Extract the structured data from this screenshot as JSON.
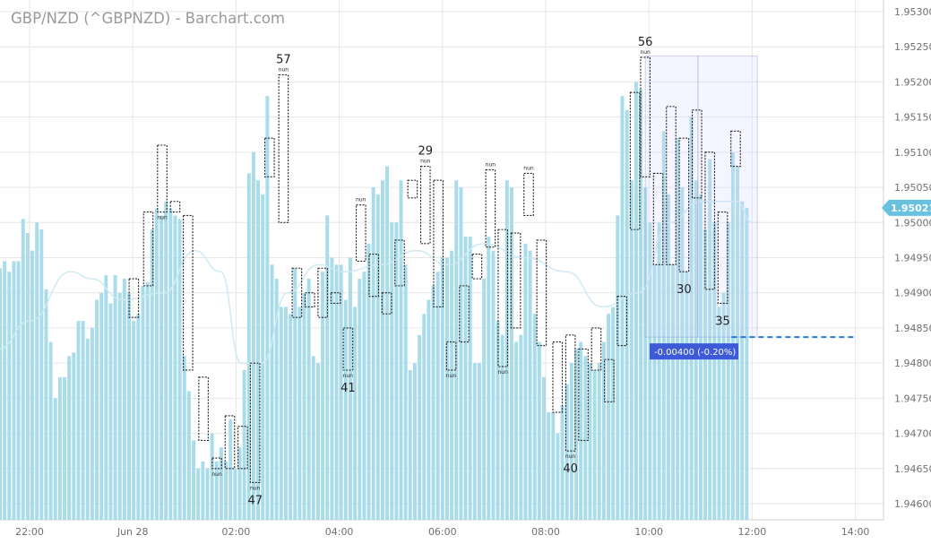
{
  "title": "GBP/NZD (^GBPNZD) - Barchart.com",
  "colors": {
    "bar": "#a8dcea",
    "bar_edge": "#7fcbe0",
    "grid": "#e6e6e6",
    "box": "#222222",
    "price_tag": "#67c1df",
    "measure": "#3d5bd9",
    "dashed": "#2b7bd6",
    "ma_line": "#cfe9f5"
  },
  "price_tag": {
    "label": "1.95021"
  },
  "measure_label": {
    "text": "-0.00400 (-0.20%)"
  },
  "chart_data": {
    "type": "bar",
    "y_ticks": [
      "1.94600",
      "1.94650",
      "1.94700",
      "1.94750",
      "1.94800",
      "1.94850",
      "1.94900",
      "1.94950",
      "1.95000",
      "1.95050",
      "1.95100",
      "1.95150",
      "1.95200",
      "1.95250",
      "1.95300"
    ],
    "ylim": [
      1.9459,
      1.9532
    ],
    "x_ticks": [
      {
        "label": "22:00",
        "t": 1.0
      },
      {
        "label": "Jun 28",
        "t": 3.0
      },
      {
        "label": "02:00",
        "t": 5.0
      },
      {
        "label": "04:00",
        "t": 7.0
      },
      {
        "label": "06:00",
        "t": 9.0
      },
      {
        "label": "08:00",
        "t": 11.0
      },
      {
        "label": "10:00",
        "t": 13.0
      },
      {
        "label": "12:00",
        "t": 15.0
      },
      {
        "label": "14:00",
        "t": 17.0
      }
    ],
    "tpo_values": [
      1.94815,
      1.94858,
      1.94925,
      1.94945,
      1.94935,
      1.94945,
      1.9493,
      1.94945,
      1.94945,
      1.95005,
      1.94985,
      1.9496,
      1.95,
      1.9499,
      1.94905,
      1.9483,
      1.9475,
      1.9478,
      1.9478,
      1.9481,
      1.94815,
      1.9486,
      1.9486,
      1.94835,
      1.9485,
      1.9489,
      1.949,
      1.94925,
      1.94885,
      1.94925,
      1.949,
      1.9492,
      1.949,
      1.9486,
      1.9487,
      1.9491,
      1.94915,
      1.9499,
      1.9502,
      1.9501,
      1.9503,
      1.9502,
      1.9501,
      1.95005,
      1.9481,
      1.9476,
      1.9469,
      1.9465,
      1.9466,
      1.9465,
      1.947,
      1.9466,
      1.9468,
      1.9466,
      1.9472,
      1.9465,
      1.9468,
      1.9479,
      1.9507,
      1.951,
      1.9506,
      1.9504,
      1.9518,
      1.9494,
      1.9492,
      1.9488,
      1.9488,
      1.9487,
      1.94935,
      1.9488,
      1.949,
      1.9492,
      1.9481,
      1.948,
      1.9493,
      1.9501,
      1.9495,
      1.9494,
      1.9494,
      1.9489,
      1.9495,
      1.9488,
      1.9492,
      1.9493,
      1.9497,
      1.9505,
      1.9504,
      1.9506,
      1.9508,
      1.95,
      1.95,
      1.9506,
      1.9494,
      1.9479,
      1.948,
      1.9484,
      1.9487,
      1.9489,
      1.9491,
      1.9493,
      1.9495,
      1.9495,
      1.9496,
      1.9506,
      1.9505,
      1.9498,
      1.9498,
      1.948,
      1.948,
      1.9492,
      1.9498,
      1.9496,
      1.9486,
      1.9484,
      1.9506,
      1.9505,
      1.9483,
      1.9484,
      1.9497,
      1.9496,
      1.9487,
      1.9483,
      1.9478,
      1.9473,
      1.9473,
      1.947,
      1.9474,
      1.9477,
      1.948,
      1.9482,
      1.9483,
      1.9481,
      1.948,
      1.9479,
      1.948,
      1.9483,
      1.9487,
      1.9488,
      1.9501,
      1.9518,
      1.9516,
      1.9506,
      1.952,
      1.9519,
      1.9505,
      1.95,
      1.9494,
      1.95,
      1.9513,
      1.9504,
      1.9494,
      1.9512,
      1.9505,
      1.9493,
      1.9515,
      1.9506,
      1.9504,
      1.9499,
      1.9509,
      1.95,
      1.9488,
      1.949,
      1.95,
      1.951,
      1.9508,
      1.9503,
      1.95021
    ],
    "tpo_boxes": [
      {
        "t": 3.02,
        "low": 1.94865,
        "high": 1.9492
      },
      {
        "t": 3.3,
        "low": 1.9491,
        "high": 1.95015
      },
      {
        "t": 3.57,
        "low": 1.95015,
        "high": 1.9511,
        "tag": "nun"
      },
      {
        "t": 3.82,
        "low": 1.95015,
        "high": 1.9503
      },
      {
        "t": 4.07,
        "low": 1.9479,
        "high": 1.9501
      },
      {
        "t": 4.37,
        "low": 1.9469,
        "high": 1.9478
      },
      {
        "t": 4.63,
        "low": 1.9465,
        "high": 1.94665,
        "tag": "nun"
      },
      {
        "t": 4.88,
        "low": 1.9465,
        "high": 1.94725
      },
      {
        "t": 5.13,
        "low": 1.9465,
        "high": 1.9471
      },
      {
        "t": 5.37,
        "low": 1.9463,
        "high": 1.948,
        "tag": "nun",
        "label": "47",
        "label_pos": "below"
      },
      {
        "t": 5.65,
        "low": 1.95065,
        "high": 1.9512
      },
      {
        "t": 5.92,
        "low": 1.95,
        "high": 1.9521,
        "tag": "nun",
        "label": "57",
        "label_pos": "above"
      },
      {
        "t": 6.18,
        "low": 1.94865,
        "high": 1.94935
      },
      {
        "t": 6.43,
        "low": 1.9488,
        "high": 1.949
      },
      {
        "t": 6.68,
        "low": 1.94865,
        "high": 1.94935
      },
      {
        "t": 6.93,
        "low": 1.94885,
        "high": 1.949
      },
      {
        "t": 7.17,
        "low": 1.9479,
        "high": 1.9485,
        "tag": "nun",
        "label": "41",
        "label_pos": "below"
      },
      {
        "t": 7.42,
        "low": 1.94945,
        "high": 1.95025,
        "tag": "nun",
        "tag_pos": "above"
      },
      {
        "t": 7.67,
        "low": 1.94895,
        "high": 1.94955
      },
      {
        "t": 7.92,
        "low": 1.9487,
        "high": 1.949
      },
      {
        "t": 8.17,
        "low": 1.9491,
        "high": 1.94975
      },
      {
        "t": 8.42,
        "low": 1.95035,
        "high": 1.9506
      },
      {
        "t": 8.67,
        "low": 1.9497,
        "high": 1.9508,
        "tag": "nun",
        "label": "29",
        "label_pos": "above"
      },
      {
        "t": 8.92,
        "low": 1.9488,
        "high": 1.9506
      },
      {
        "t": 9.17,
        "low": 1.9479,
        "high": 1.9483,
        "tag": "nun"
      },
      {
        "t": 9.42,
        "low": 1.9483,
        "high": 1.9491
      },
      {
        "t": 9.67,
        "low": 1.9492,
        "high": 1.94955
      },
      {
        "t": 9.93,
        "low": 1.94965,
        "high": 1.95075,
        "tag": "nun",
        "tag_pos": "above"
      },
      {
        "t": 10.17,
        "low": 1.94795,
        "high": 1.9499,
        "tag": "nun"
      },
      {
        "t": 10.42,
        "low": 1.9485,
        "high": 1.94985
      },
      {
        "t": 10.67,
        "low": 1.9501,
        "high": 1.9507,
        "tag": "nun",
        "tag_pos": "above"
      },
      {
        "t": 10.92,
        "low": 1.94825,
        "high": 1.94975
      },
      {
        "t": 11.23,
        "low": 1.9473,
        "high": 1.9483
      },
      {
        "t": 11.48,
        "low": 1.94675,
        "high": 1.9484,
        "tag": "nun",
        "label": "40",
        "label_pos": "below"
      },
      {
        "t": 11.73,
        "low": 1.9469,
        "high": 1.9482
      },
      {
        "t": 11.98,
        "low": 1.9479,
        "high": 1.9485
      },
      {
        "t": 12.23,
        "low": 1.94745,
        "high": 1.94805
      },
      {
        "t": 12.48,
        "low": 1.94825,
        "high": 1.94895
      },
      {
        "t": 12.73,
        "low": 1.9499,
        "high": 1.95185
      },
      {
        "t": 12.93,
        "low": 1.95065,
        "high": 1.95235,
        "tag": "nun",
        "label": "56",
        "label_pos": "above"
      },
      {
        "t": 13.18,
        "low": 1.9494,
        "high": 1.9507
      },
      {
        "t": 13.43,
        "low": 1.9494,
        "high": 1.95165
      },
      {
        "t": 13.68,
        "low": 1.9493,
        "high": 1.9512,
        "label": "30",
        "label_pos": "below"
      },
      {
        "t": 13.93,
        "low": 1.95035,
        "high": 1.9516
      },
      {
        "t": 14.18,
        "low": 1.94905,
        "high": 1.951
      },
      {
        "t": 14.43,
        "low": 1.94885,
        "high": 1.95015,
        "label": "35",
        "label_pos": "below"
      },
      {
        "t": 14.68,
        "low": 1.9508,
        "high": 1.9513
      }
    ],
    "ma_line": [
      {
        "t": -0.2,
        "v": 1.9476
      },
      {
        "t": 0.4,
        "v": 1.9482
      },
      {
        "t": 1.0,
        "v": 1.9486
      },
      {
        "t": 1.8,
        "v": 1.9493
      },
      {
        "t": 2.2,
        "v": 1.9492
      },
      {
        "t": 2.8,
        "v": 1.9489
      },
      {
        "t": 3.6,
        "v": 1.949
      },
      {
        "t": 4.2,
        "v": 1.9496
      },
      {
        "t": 4.7,
        "v": 1.9493
      },
      {
        "t": 5.1,
        "v": 1.948
      },
      {
        "t": 5.5,
        "v": 1.948
      },
      {
        "t": 6.0,
        "v": 1.949
      },
      {
        "t": 6.6,
        "v": 1.9494
      },
      {
        "t": 7.1,
        "v": 1.9493
      },
      {
        "t": 7.8,
        "v": 1.9494
      },
      {
        "t": 8.5,
        "v": 1.9496
      },
      {
        "t": 9.1,
        "v": 1.9494
      },
      {
        "t": 9.8,
        "v": 1.9497
      },
      {
        "t": 10.6,
        "v": 1.9495
      },
      {
        "t": 11.4,
        "v": 1.9493
      },
      {
        "t": 12.1,
        "v": 1.9488
      },
      {
        "t": 12.8,
        "v": 1.949
      },
      {
        "t": 13.4,
        "v": 1.95
      },
      {
        "t": 14.0,
        "v": 1.9503
      },
      {
        "t": 14.7,
        "v": 1.9503
      },
      {
        "t": 15.0,
        "v": 1.95
      }
    ],
    "measure_range": {
      "t_start": 12.93,
      "t_end": 15.1,
      "high": 1.95237,
      "low": 1.94837,
      "vline_t": 13.95
    },
    "dashed_level": {
      "v": 1.94837,
      "t_start": 14.6,
      "t_end": 17.0
    },
    "last_price": 1.95021,
    "x_domain": [
      0.6,
      17.65
    ],
    "bars_domain": [
      0.6,
      14.95
    ]
  }
}
